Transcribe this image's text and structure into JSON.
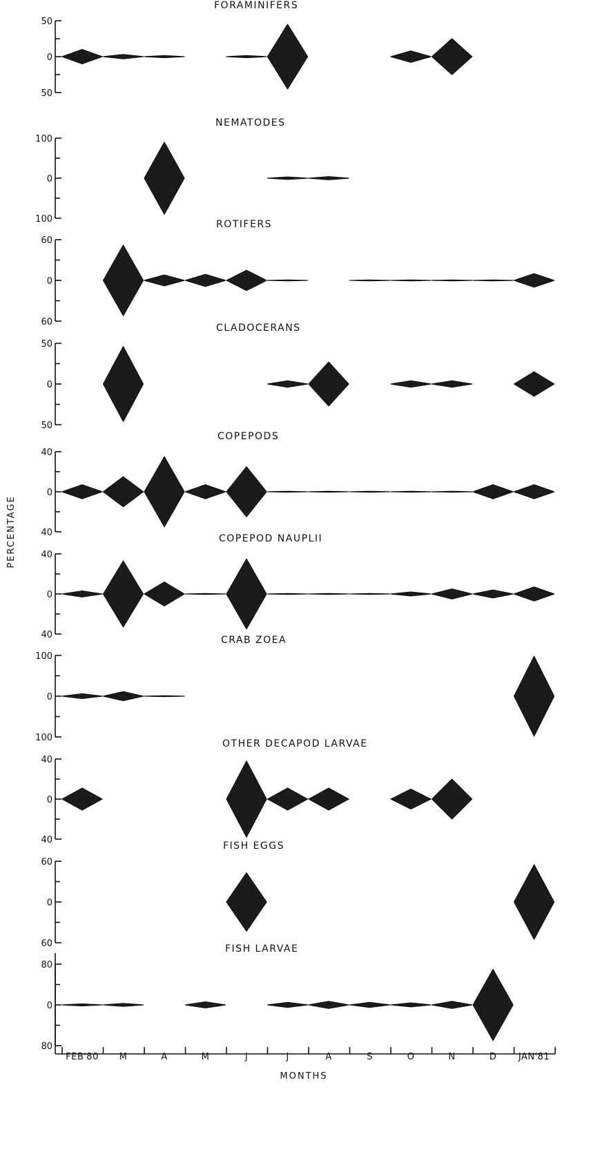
{
  "chart_data": {
    "type": "kite",
    "xlabel": "MONTHS",
    "ylabel": "PERCENTAGE",
    "months": [
      "FEB'80",
      "M",
      "A",
      "M",
      "J",
      "J",
      "A",
      "S",
      "O",
      "N",
      "D",
      "JAN'81"
    ],
    "panels": [
      {
        "title": "FORAMINIFERS",
        "ylim": [
          -50,
          50
        ],
        "ytick_labels": [
          "50",
          "0",
          "50"
        ],
        "values": [
          10,
          3,
          1.5,
          null,
          1.5,
          45,
          null,
          null,
          8,
          25,
          null,
          null
        ]
      },
      {
        "title": "NEMATODES",
        "ylim": [
          -100,
          100
        ],
        "ytick_labels": [
          "100",
          "0",
          "100"
        ],
        "values": [
          null,
          null,
          90,
          null,
          null,
          3,
          4,
          null,
          null,
          null,
          null,
          null
        ]
      },
      {
        "title": "ROTIFERS",
        "ylim": [
          -60,
          60
        ],
        "ytick_labels": [
          "60",
          "0",
          "60"
        ],
        "values": [
          null,
          52,
          8,
          9,
          15,
          0,
          null,
          0,
          0,
          0,
          0,
          10
        ]
      },
      {
        "title": "CLADOCERANS",
        "ylim": [
          -50,
          50
        ],
        "ytick_labels": [
          "50",
          "0",
          "50"
        ],
        "values": [
          null,
          46,
          null,
          null,
          null,
          4,
          27,
          null,
          4,
          4,
          null,
          15
        ]
      },
      {
        "title": "COPEPODS",
        "ylim": [
          -40,
          40
        ],
        "ytick_labels": [
          "40",
          "0",
          "40"
        ],
        "values": [
          7,
          15,
          35,
          7,
          25,
          0,
          0,
          0,
          0,
          0,
          7,
          7
        ]
      },
      {
        "title": "COPEPOD NAUPLII",
        "ylim": [
          -40,
          40
        ],
        "ytick_labels": [
          "40",
          "0",
          "40"
        ],
        "values": [
          3,
          33,
          12,
          0,
          35,
          0,
          0,
          0,
          2,
          5,
          4,
          7
        ]
      },
      {
        "title": "CRAB ZOEA",
        "ylim": [
          -100,
          100
        ],
        "ytick_labels": [
          "100",
          "0",
          "100"
        ],
        "values": [
          6,
          11,
          0,
          null,
          null,
          null,
          null,
          null,
          null,
          null,
          null,
          98
        ]
      },
      {
        "title": "OTHER DECAPOD LARVAE",
        "ylim": [
          -40,
          40
        ],
        "ytick_labels": [
          "40",
          "0",
          "40"
        ],
        "values": [
          11,
          null,
          null,
          null,
          38,
          11,
          11,
          null,
          10,
          20,
          null,
          null
        ]
      },
      {
        "title": "FISH EGGS",
        "ylim": [
          -60,
          60
        ],
        "ytick_labels": [
          "60",
          "0",
          "60"
        ],
        "values": [
          null,
          null,
          null,
          null,
          43,
          null,
          null,
          null,
          null,
          null,
          null,
          55
        ]
      },
      {
        "title": "FISH LARVAE",
        "ylim": [
          -80,
          80
        ],
        "ytick_labels": [
          "80",
          "0",
          "80"
        ],
        "values": [
          2,
          3,
          null,
          6,
          null,
          5,
          7,
          5,
          4,
          7,
          70,
          null
        ]
      }
    ]
  }
}
